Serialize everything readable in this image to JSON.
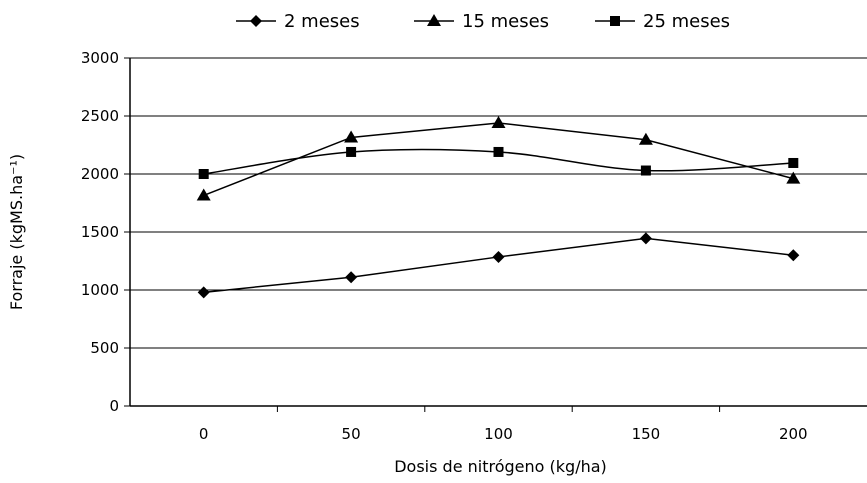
{
  "chart_data": {
    "type": "line",
    "xlabel": "Dosis de nitrógeno (kg/ha)",
    "ylabel": "Forraje (kgMS.ha⁻¹)",
    "categories": [
      "0",
      "50",
      "100",
      "150",
      "200"
    ],
    "x": [
      0,
      50,
      100,
      150,
      200
    ],
    "ylim": [
      0,
      3000
    ],
    "yticks": [
      "0",
      "500",
      "1000",
      "1500",
      "2000",
      "2500",
      "3000"
    ],
    "grid": true,
    "legend_position": "top",
    "series": [
      {
        "name": "2 meses",
        "marker": "diamond",
        "smooth": false,
        "values": [
          980,
          1110,
          1285,
          1445,
          1300
        ]
      },
      {
        "name": "15 meses",
        "marker": "triangle",
        "smooth": false,
        "values": [
          1815,
          2315,
          2440,
          2295,
          1960
        ]
      },
      {
        "name": "25 meses",
        "marker": "square",
        "smooth": true,
        "values": [
          2000,
          2190,
          2190,
          2030,
          2095
        ]
      }
    ]
  }
}
